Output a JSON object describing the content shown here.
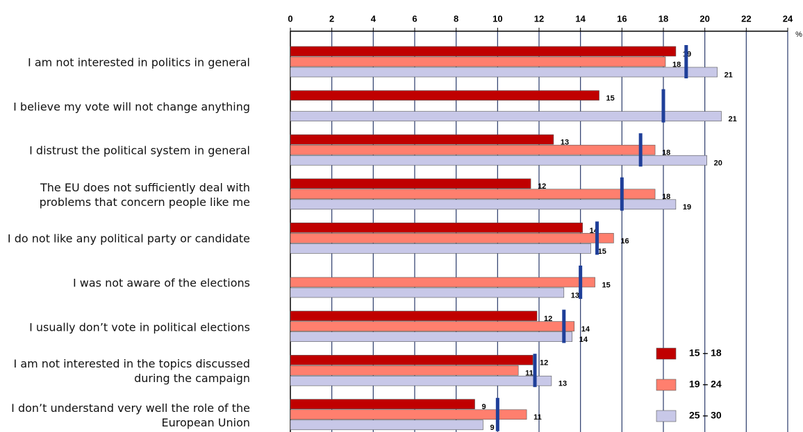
{
  "chart_data": {
    "type": "bar",
    "orientation": "horizontal",
    "unit": "%",
    "categories": [
      "I am not interested in politics in general",
      "I believe my vote will not change anything",
      "I distrust the political system in general",
      "The EU does not sufficiently deal with problems that concern people like me",
      "I do not like any political party or candidate",
      "I was not aware of the elections",
      "I usually don’t vote in political elections",
      "I am not interested in the topics discussed during the campaign",
      "I don’t understand very well the role of the European Union"
    ],
    "series": [
      {
        "name": "15 – 18",
        "color": "#c00000",
        "values": [
          18.6,
          14.9,
          12.7,
          11.6,
          14.1,
          null,
          11.9,
          11.7,
          8.9
        ],
        "value_labels": [
          "19",
          "15",
          "13",
          "12",
          "14",
          null,
          "12",
          "12",
          "9"
        ]
      },
      {
        "name": "19 – 24",
        "color": "#ff7f6e",
        "values": [
          18.1,
          null,
          17.6,
          17.6,
          15.6,
          14.7,
          13.7,
          11.0,
          11.4
        ],
        "value_labels": [
          "18",
          null,
          "18",
          "18",
          "16",
          "15",
          "14",
          "11",
          "11"
        ]
      },
      {
        "name": "25 – 30",
        "color": "#c8c8e8",
        "values": [
          20.6,
          20.8,
          20.1,
          18.6,
          14.5,
          13.2,
          13.6,
          12.6,
          9.3
        ],
        "value_labels": [
          "21",
          "21",
          "20",
          "19",
          "15",
          "13",
          "14",
          "13",
          "9"
        ]
      }
    ],
    "markers": {
      "color": "#1f3f99",
      "values": [
        19.1,
        18.0,
        16.9,
        16.0,
        14.8,
        14.0,
        13.2,
        11.8,
        10.0
      ]
    },
    "xlim": [
      0,
      24
    ],
    "xticks": [
      0,
      2,
      4,
      6,
      8,
      10,
      12,
      14,
      16,
      18,
      20,
      22,
      24
    ],
    "grid": true,
    "legend": "bottom-right"
  }
}
